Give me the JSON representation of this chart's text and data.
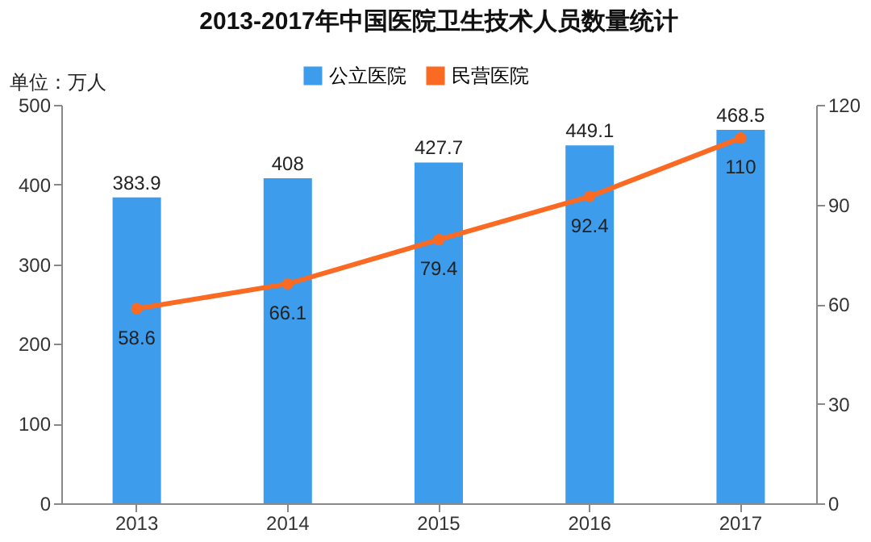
{
  "chart_data": {
    "type": "bar",
    "title": "2013-2017年中国医院卫生技术人员数量统计",
    "annotations": [
      "单位：万人"
    ],
    "categories": [
      "2013",
      "2014",
      "2015",
      "2016",
      "2017"
    ],
    "series": [
      {
        "name": "公立医院",
        "color": "#3d9ceb",
        "values": [
          383.9,
          408,
          427.7,
          449.1,
          468.5
        ]
      },
      {
        "name": "民营医院",
        "type": "line",
        "axis": "y2",
        "color": "#fb6a22",
        "values": [
          58.6,
          66.1,
          79.4,
          92.4,
          110
        ]
      }
    ],
    "ylim": [
      0,
      500
    ],
    "yticks": [
      0,
      100,
      200,
      300,
      400,
      500
    ],
    "y2lim": [
      0,
      120
    ],
    "y2ticks": [
      0,
      30,
      60,
      90,
      120
    ],
    "data_labels": true,
    "legend": "top",
    "marker": "circle",
    "line_style": "solid"
  }
}
